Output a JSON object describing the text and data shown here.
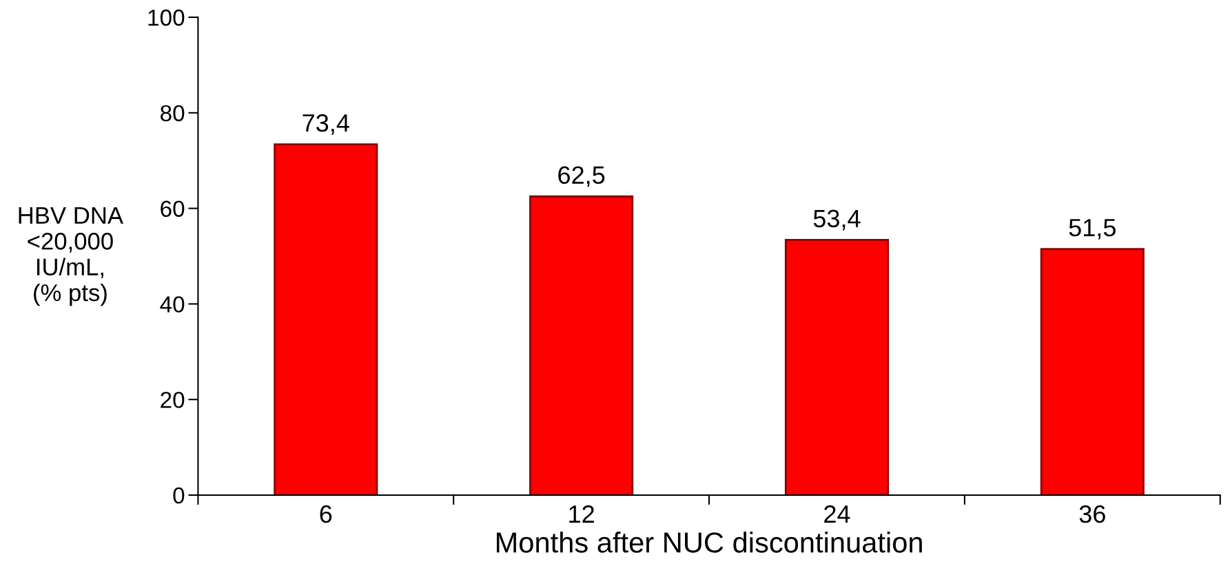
{
  "chart_data": {
    "type": "bar",
    "xlabel": "Months after NUC discontinuation",
    "ylabel": "HBV DNA\n<20,000\nIU/mL,\n(% pts)",
    "categories": [
      "6",
      "12",
      "24",
      "36"
    ],
    "values": [
      73.4,
      62.5,
      53.4,
      51.5
    ],
    "value_labels": [
      "73,4",
      "62,5",
      "53,4",
      "51,5"
    ],
    "color": "#fe0000",
    "ylim": [
      0,
      100
    ],
    "yticks": [
      0,
      20,
      40,
      60,
      80,
      100
    ],
    "grid": false
  }
}
